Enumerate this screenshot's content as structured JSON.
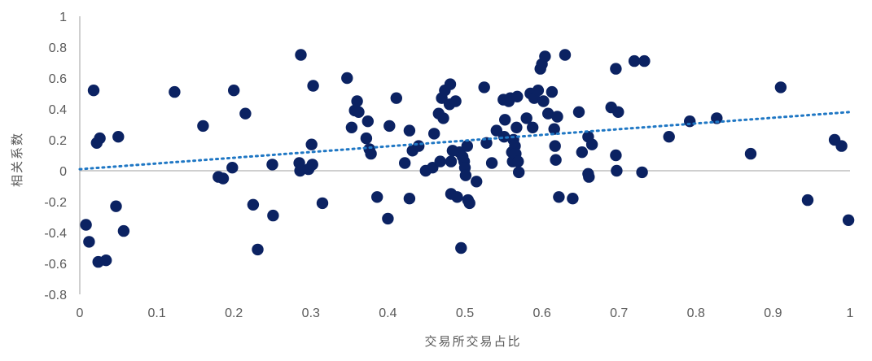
{
  "chart_data": {
    "type": "scatter",
    "xlabel": "交易所交易占比",
    "ylabel": "相关系数",
    "xlim": [
      0,
      1
    ],
    "ylim": [
      -0.8,
      1
    ],
    "x_ticks": [
      "0",
      "0.1",
      "0.2",
      "0.3",
      "0.4",
      "0.5",
      "0.6",
      "0.7",
      "0.8",
      "0.9",
      "1"
    ],
    "y_ticks": [
      "1",
      "0.8",
      "0.6",
      "0.4",
      "0.2",
      "0",
      "-0.2",
      "-0.4",
      "-0.6",
      "-0.8"
    ],
    "grid": false,
    "legend": "none",
    "marker_color": "#0b2262",
    "trendline": {
      "type": "linear",
      "style": "dotted",
      "color": "#1f77c4",
      "start": [
        0,
        0.01
      ],
      "end": [
        1,
        0.38
      ]
    },
    "points": [
      [
        0.008,
        -0.35
      ],
      [
        0.012,
        -0.46
      ],
      [
        0.018,
        0.52
      ],
      [
        0.022,
        0.18
      ],
      [
        0.026,
        0.21
      ],
      [
        0.024,
        -0.59
      ],
      [
        0.034,
        -0.58
      ],
      [
        0.047,
        -0.23
      ],
      [
        0.05,
        0.22
      ],
      [
        0.057,
        -0.39
      ],
      [
        0.123,
        0.51
      ],
      [
        0.16,
        0.29
      ],
      [
        0.18,
        -0.04
      ],
      [
        0.186,
        -0.05
      ],
      [
        0.198,
        0.02
      ],
      [
        0.2,
        0.52
      ],
      [
        0.215,
        0.37
      ],
      [
        0.225,
        -0.22
      ],
      [
        0.231,
        -0.51
      ],
      [
        0.25,
        0.04
      ],
      [
        0.251,
        -0.29
      ],
      [
        0.287,
        0.75
      ],
      [
        0.285,
        0.05
      ],
      [
        0.286,
        0.0
      ],
      [
        0.297,
        0.01
      ],
      [
        0.301,
        0.17
      ],
      [
        0.302,
        0.04
      ],
      [
        0.303,
        0.55
      ],
      [
        0.315,
        -0.21
      ],
      [
        0.347,
        0.6
      ],
      [
        0.353,
        0.28
      ],
      [
        0.357,
        0.39
      ],
      [
        0.36,
        0.45
      ],
      [
        0.362,
        0.38
      ],
      [
        0.372,
        0.21
      ],
      [
        0.374,
        0.32
      ],
      [
        0.376,
        0.14
      ],
      [
        0.378,
        0.11
      ],
      [
        0.386,
        -0.17
      ],
      [
        0.4,
        -0.31
      ],
      [
        0.402,
        0.29
      ],
      [
        0.411,
        0.47
      ],
      [
        0.422,
        0.05
      ],
      [
        0.428,
        0.26
      ],
      [
        0.428,
        -0.18
      ],
      [
        0.432,
        0.13
      ],
      [
        0.44,
        0.16
      ],
      [
        0.449,
        0.0
      ],
      [
        0.458,
        0.02
      ],
      [
        0.46,
        0.24
      ],
      [
        0.466,
        0.37
      ],
      [
        0.468,
        0.06
      ],
      [
        0.47,
        0.47
      ],
      [
        0.472,
        0.34
      ],
      [
        0.474,
        0.52
      ],
      [
        0.48,
        0.43
      ],
      [
        0.481,
        0.56
      ],
      [
        0.482,
        0.06
      ],
      [
        0.484,
        0.13
      ],
      [
        0.482,
        -0.15
      ],
      [
        0.488,
        0.45
      ],
      [
        0.49,
        -0.17
      ],
      [
        0.493,
        0.12
      ],
      [
        0.495,
        -0.5
      ],
      [
        0.497,
        0.09
      ],
      [
        0.499,
        0.06
      ],
      [
        0.5,
        0.02
      ],
      [
        0.501,
        -0.03
      ],
      [
        0.503,
        0.16
      ],
      [
        0.504,
        -0.19
      ],
      [
        0.506,
        -0.21
      ],
      [
        0.515,
        -0.07
      ],
      [
        0.525,
        0.54
      ],
      [
        0.528,
        0.18
      ],
      [
        0.535,
        0.05
      ],
      [
        0.541,
        0.26
      ],
      [
        0.55,
        0.46
      ],
      [
        0.551,
        0.22
      ],
      [
        0.552,
        0.33
      ],
      [
        0.557,
        0.45
      ],
      [
        0.559,
        0.47
      ],
      [
        0.561,
        0.12
      ],
      [
        0.562,
        0.06
      ],
      [
        0.563,
        0.2
      ],
      [
        0.565,
        0.16
      ],
      [
        0.566,
        0.11
      ],
      [
        0.567,
        0.28
      ],
      [
        0.568,
        0.48
      ],
      [
        0.569,
        0.06
      ],
      [
        0.57,
        -0.01
      ],
      [
        0.58,
        0.34
      ],
      [
        0.585,
        0.5
      ],
      [
        0.588,
        0.28
      ],
      [
        0.59,
        0.47
      ],
      [
        0.595,
        0.52
      ],
      [
        0.598,
        0.66
      ],
      [
        0.6,
        0.69
      ],
      [
        0.602,
        0.45
      ],
      [
        0.604,
        0.74
      ],
      [
        0.608,
        0.37
      ],
      [
        0.613,
        0.51
      ],
      [
        0.616,
        0.27
      ],
      [
        0.617,
        0.16
      ],
      [
        0.618,
        0.07
      ],
      [
        0.62,
        0.35
      ],
      [
        0.622,
        -0.17
      ],
      [
        0.63,
        0.75
      ],
      [
        0.64,
        -0.18
      ],
      [
        0.648,
        0.38
      ],
      [
        0.652,
        0.12
      ],
      [
        0.66,
        0.22
      ],
      [
        0.66,
        -0.02
      ],
      [
        0.661,
        -0.04
      ],
      [
        0.665,
        0.17
      ],
      [
        0.69,
        0.41
      ],
      [
        0.696,
        0.66
      ],
      [
        0.696,
        0.1
      ],
      [
        0.697,
        0.0
      ],
      [
        0.699,
        0.38
      ],
      [
        0.72,
        0.71
      ],
      [
        0.73,
        -0.01
      ],
      [
        0.733,
        0.71
      ],
      [
        0.765,
        0.22
      ],
      [
        0.792,
        0.32
      ],
      [
        0.827,
        0.34
      ],
      [
        0.871,
        0.11
      ],
      [
        0.91,
        0.54
      ],
      [
        0.945,
        -0.19
      ],
      [
        0.98,
        0.2
      ],
      [
        0.989,
        0.16
      ],
      [
        0.998,
        -0.32
      ]
    ]
  }
}
